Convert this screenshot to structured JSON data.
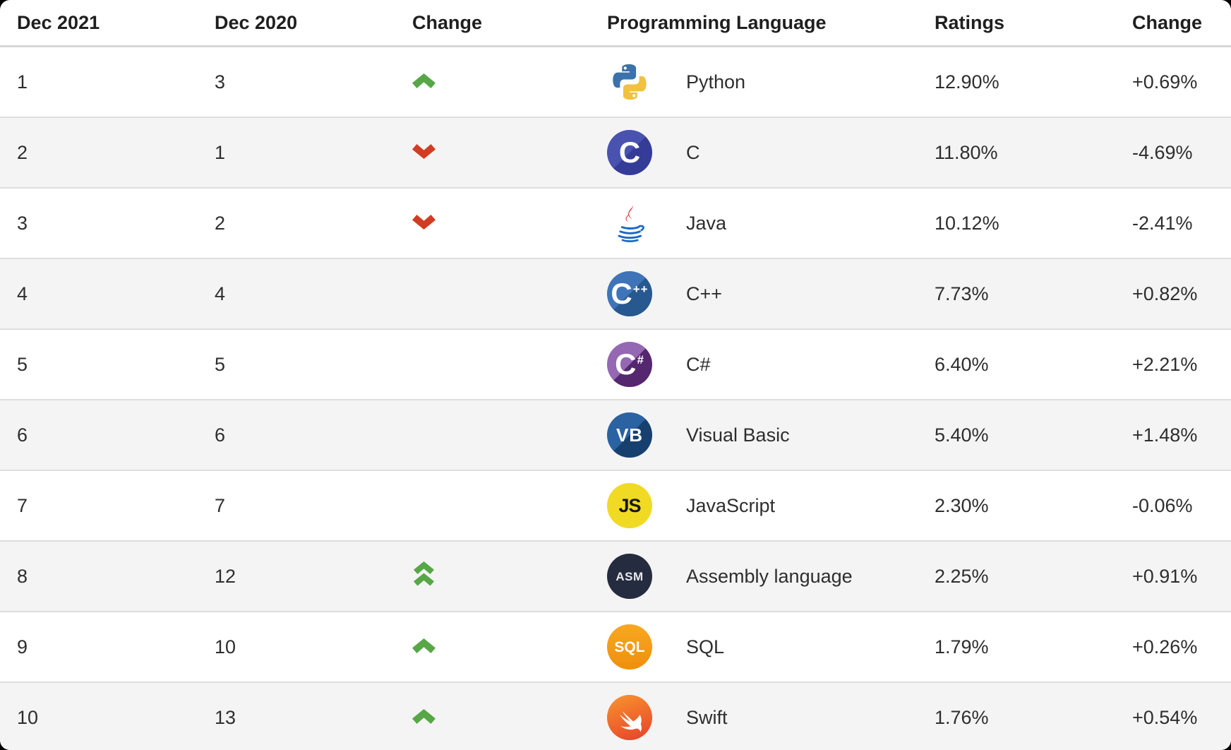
{
  "page": {
    "background": "#000000",
    "card_background": "#ffffff"
  },
  "colors": {
    "up_arrow": "#57a747",
    "down_arrow": "#d23c22",
    "row_alt_background": "#f4f4f4",
    "header_text": "#1f1f1f",
    "cell_text": "#2e2e2e",
    "row_divider": "#dedede",
    "header_divider": "#d6d6d6"
  },
  "table": {
    "columns": [
      {
        "label": "Dec 2021"
      },
      {
        "label": "Dec 2020"
      },
      {
        "label": "Change"
      },
      {
        "label": "Programming Language"
      },
      {
        "label": "Ratings"
      },
      {
        "label": "Change"
      }
    ],
    "rows": [
      {
        "dec2021_rank": "1",
        "dec2020_rank": "3",
        "change_direction": "up",
        "icon": "python-logo",
        "language": "Python",
        "ratings": "12.90%",
        "change_pct": "+0.69%"
      },
      {
        "dec2021_rank": "2",
        "dec2020_rank": "1",
        "change_direction": "down",
        "icon": "c-logo",
        "language": "C",
        "ratings": "11.80%",
        "change_pct": "-4.69%"
      },
      {
        "dec2021_rank": "3",
        "dec2020_rank": "2",
        "change_direction": "down",
        "icon": "java-logo",
        "language": "Java",
        "ratings": "10.12%",
        "change_pct": "-2.41%"
      },
      {
        "dec2021_rank": "4",
        "dec2020_rank": "4",
        "change_direction": "none",
        "icon": "cpp-logo",
        "language": "C++",
        "ratings": "7.73%",
        "change_pct": "+0.82%"
      },
      {
        "dec2021_rank": "5",
        "dec2020_rank": "5",
        "change_direction": "none",
        "icon": "csharp-logo",
        "language": "C#",
        "ratings": "6.40%",
        "change_pct": "+2.21%"
      },
      {
        "dec2021_rank": "6",
        "dec2020_rank": "6",
        "change_direction": "none",
        "icon": "visual-basic-logo",
        "language": "Visual Basic",
        "ratings": "5.40%",
        "change_pct": "+1.48%"
      },
      {
        "dec2021_rank": "7",
        "dec2020_rank": "7",
        "change_direction": "none",
        "icon": "javascript-logo",
        "language": "JavaScript",
        "ratings": "2.30%",
        "change_pct": "-0.06%"
      },
      {
        "dec2021_rank": "8",
        "dec2020_rank": "12",
        "change_direction": "double-up",
        "icon": "assembly-logo",
        "language": "Assembly language",
        "ratings": "2.25%",
        "change_pct": "+0.91%"
      },
      {
        "dec2021_rank": "9",
        "dec2020_rank": "10",
        "change_direction": "up",
        "icon": "sql-logo",
        "language": "SQL",
        "ratings": "1.79%",
        "change_pct": "+0.26%"
      },
      {
        "dec2021_rank": "10",
        "dec2020_rank": "13",
        "change_direction": "up",
        "icon": "swift-logo",
        "language": "Swift",
        "ratings": "1.76%",
        "change_pct": "+0.54%"
      }
    ]
  },
  "chart_data": {
    "type": "table",
    "title": "",
    "columns": [
      "Dec 2021",
      "Dec 2020",
      "Change",
      "Programming Language",
      "Ratings",
      "Change"
    ],
    "rows": [
      [
        1,
        3,
        "up",
        "Python",
        "12.90%",
        "+0.69%"
      ],
      [
        2,
        1,
        "down",
        "C",
        "11.80%",
        "-4.69%"
      ],
      [
        3,
        2,
        "down",
        "Java",
        "10.12%",
        "-2.41%"
      ],
      [
        4,
        4,
        "",
        "C++",
        "7.73%",
        "+0.82%"
      ],
      [
        5,
        5,
        "",
        "C#",
        "6.40%",
        "+2.21%"
      ],
      [
        6,
        6,
        "",
        "Visual Basic",
        "5.40%",
        "+1.48%"
      ],
      [
        7,
        7,
        "",
        "JavaScript",
        "2.30%",
        "-0.06%"
      ],
      [
        8,
        12,
        "double-up",
        "Assembly language",
        "2.25%",
        "+0.91%"
      ],
      [
        9,
        10,
        "up",
        "SQL",
        "1.79%",
        "+0.26%"
      ],
      [
        10,
        13,
        "up",
        "Swift",
        "1.76%",
        "+0.54%"
      ]
    ]
  }
}
